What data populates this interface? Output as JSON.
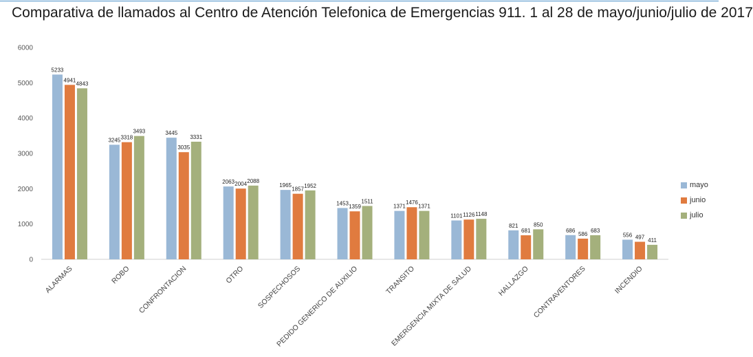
{
  "chart_data": {
    "type": "bar",
    "title": "Comparativa de llamados al Centro de Atención Telefonica de Emergencias 911. 1 al 28 de mayo/junio/julio de 2017",
    "xlabel": "",
    "ylabel": "",
    "ylim": [
      0,
      6000
    ],
    "yticks": [
      "0",
      "1000",
      "2000",
      "3000",
      "4000",
      "5000",
      "6000"
    ],
    "categories": [
      "ALARMAS",
      "ROBO",
      "CONFRONTACION",
      "OTRO",
      "SOSPECHOSOS",
      "PEDIDO GENERICO DE AUXILIO",
      "TRANSITO",
      "EMERGENCIA MIXTA DE SALUD",
      "HALLAZGO",
      "CONTRAVENTORES",
      "INCENDIO"
    ],
    "series": [
      {
        "name": "mayo",
        "color": "#9ab8d6",
        "values": [
          5233,
          3245,
          3445,
          2063,
          1965,
          1453,
          1371,
          1101,
          821,
          686,
          556
        ]
      },
      {
        "name": "junio",
        "color": "#e07b3f",
        "values": [
          4941,
          3318,
          3035,
          2004,
          1857,
          1359,
          1476,
          1126,
          681,
          586,
          497
        ]
      },
      {
        "name": "julio",
        "color": "#a4b07c",
        "values": [
          4843,
          3493,
          3331,
          2088,
          1952,
          1511,
          1371,
          1148,
          850,
          683,
          411
        ]
      }
    ],
    "legend_position": "right"
  }
}
